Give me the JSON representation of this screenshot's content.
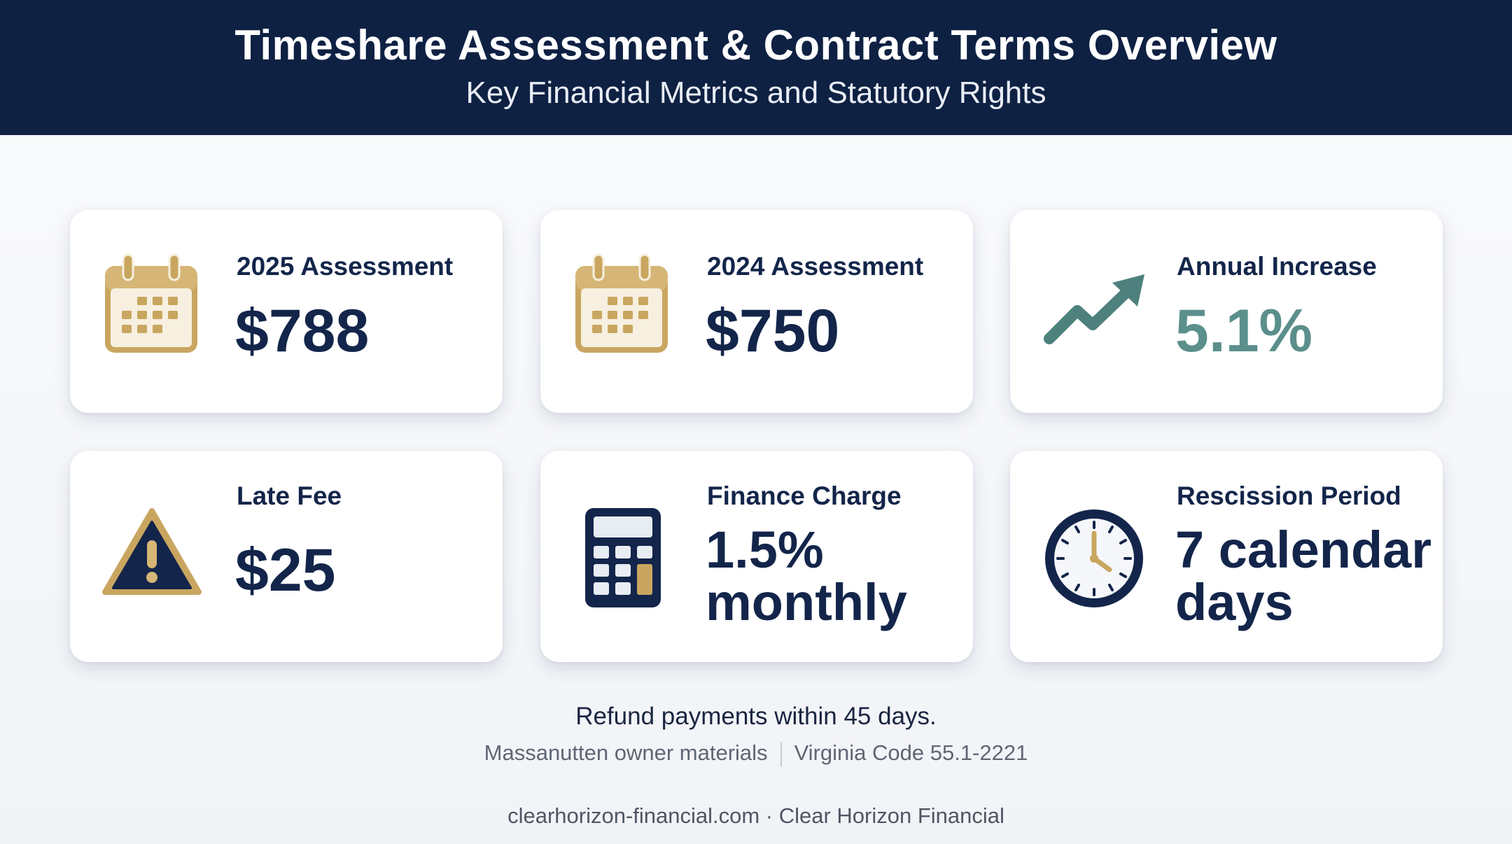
{
  "header": {
    "title": "Timeshare Assessment & Contract Terms Overview",
    "subtitle": "Key Financial Metrics and Statutory Rights"
  },
  "cards": [
    {
      "label": "2025 Assessment",
      "value": "$788",
      "icon": "calendar-icon"
    },
    {
      "label": "2024 Assessment",
      "value": "$750",
      "icon": "calendar-icon"
    },
    {
      "label": "Annual Increase",
      "value": "5.1%",
      "icon": "trend-up-icon"
    },
    {
      "label": "Late Fee",
      "value": "$25",
      "icon": "warning-icon"
    },
    {
      "label": "Finance Charge",
      "value": "1.5% monthly",
      "icon": "calculator-icon"
    },
    {
      "label": "Rescission Period",
      "value": "7 calendar days",
      "icon": "clock-icon"
    }
  ],
  "footer": {
    "note": "Refund payments within 45 days.",
    "source_1": "Massanutten owner materials",
    "source_2": "Virginia Code 55.1-2221",
    "site": "clearhorizon-financial.com · Clear Horizon Financial"
  },
  "colors": {
    "navy": "#0e2143",
    "gold": "#d1b06b",
    "teal": "#5b8f8c",
    "background": "#f3f5f8"
  }
}
